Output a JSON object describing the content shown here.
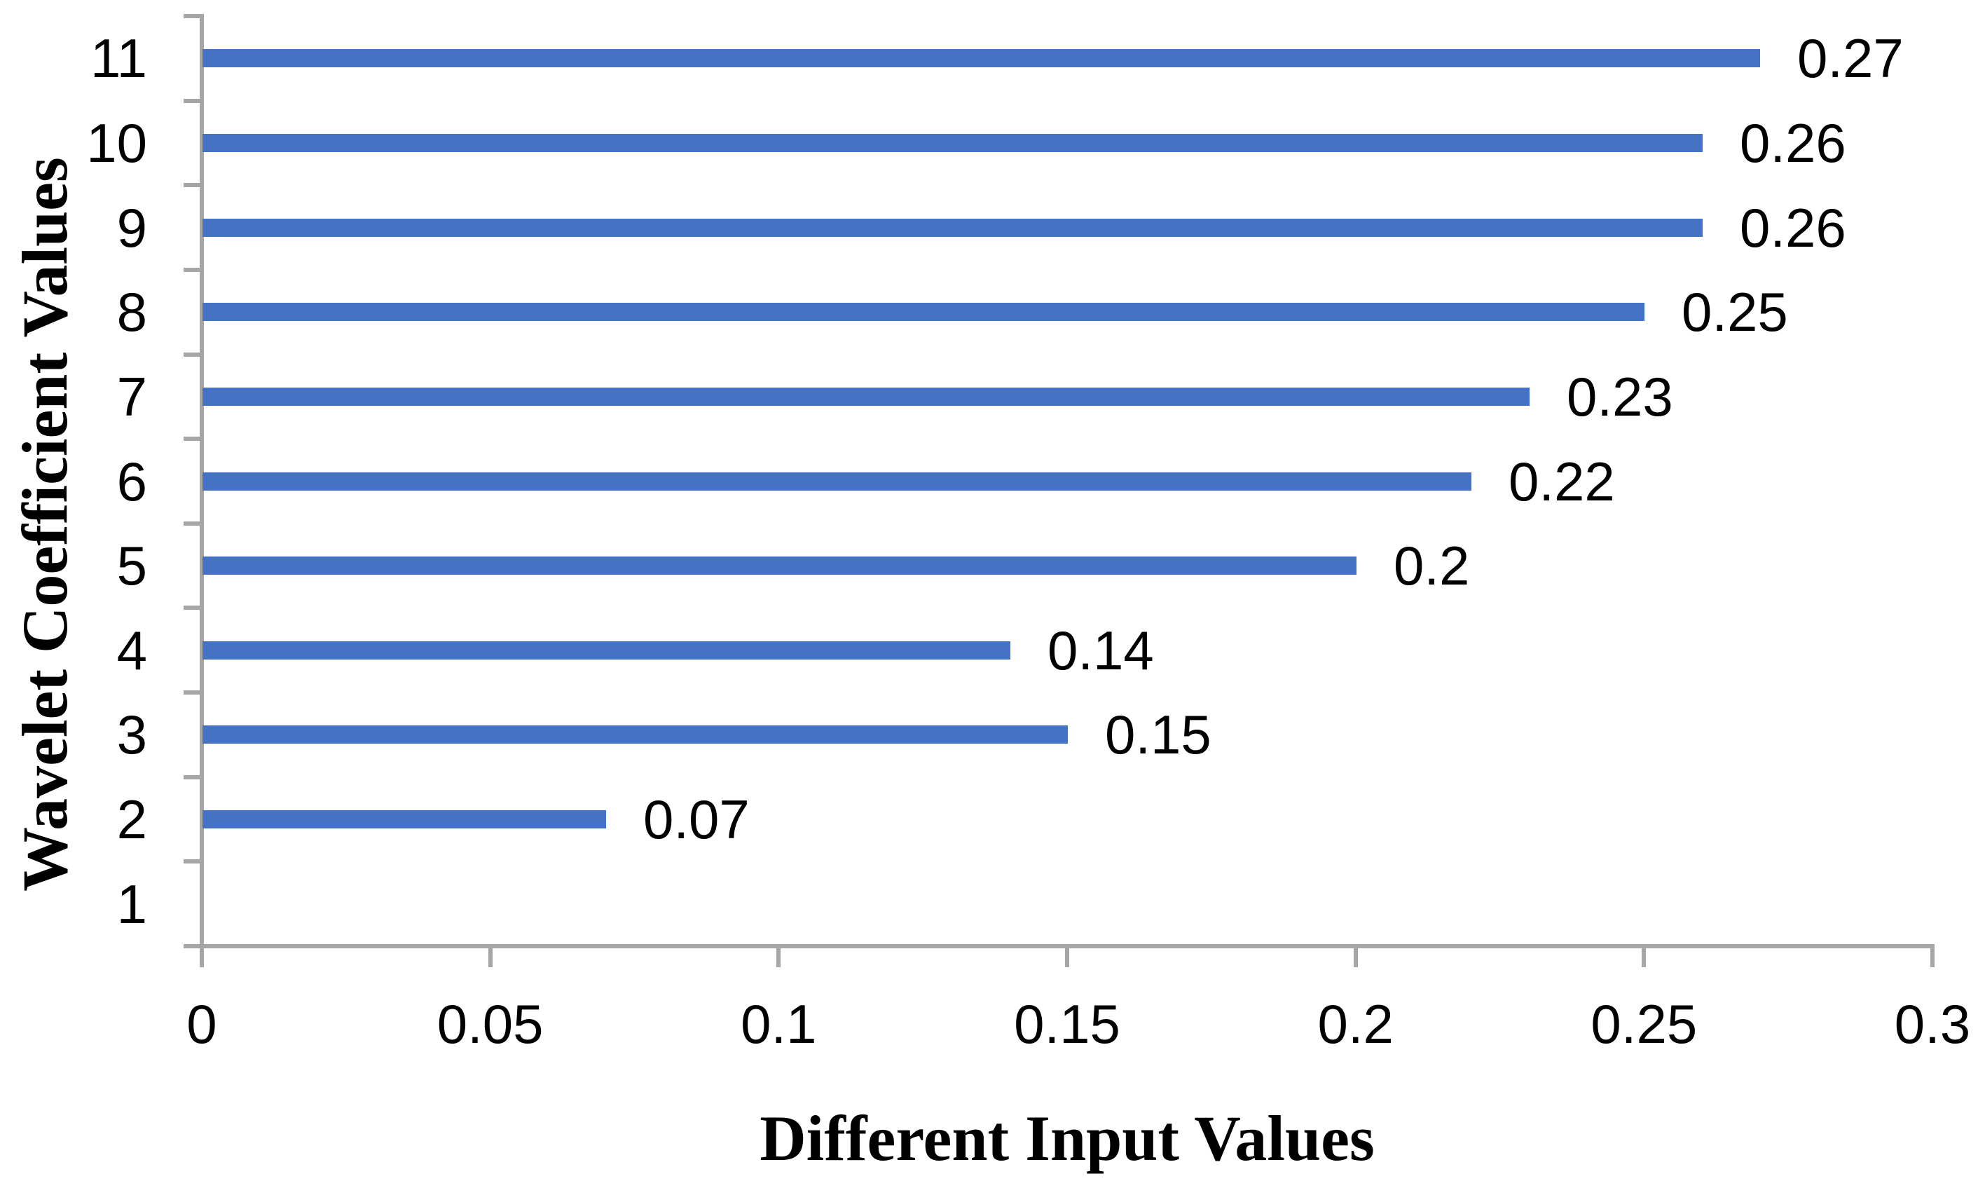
{
  "chart_data": {
    "type": "bar",
    "orientation": "horizontal",
    "title": "",
    "xlabel": "Different Input Values",
    "ylabel": "Wavelet Coefficient Values",
    "categories": [
      "11",
      "10",
      "9",
      "8",
      "7",
      "6",
      "5",
      "4",
      "3",
      "2",
      "1"
    ],
    "values": [
      0.27,
      0.26,
      0.26,
      0.25,
      0.23,
      0.22,
      0.2,
      0.14,
      0.15,
      0.07,
      0
    ],
    "data_labels": [
      "0.27",
      "0.26",
      "0.26",
      "0.25",
      "0.23",
      "0.22",
      "0.2",
      "0.14",
      "0.15",
      "0.07",
      ""
    ],
    "x_tick_labels": [
      "0",
      "0.05",
      "0.1",
      "0.15",
      "0.2",
      "0.25",
      "0.3"
    ],
    "x_tick_values": [
      0,
      0.05,
      0.1,
      0.15,
      0.2,
      0.25,
      0.3
    ],
    "xlim": [
      0,
      0.3
    ],
    "grid": false,
    "legend": "none",
    "colors": {
      "bar": "#4472c4",
      "axis": "#a6a6a6",
      "text": "#000000",
      "background": "#ffffff"
    }
  }
}
